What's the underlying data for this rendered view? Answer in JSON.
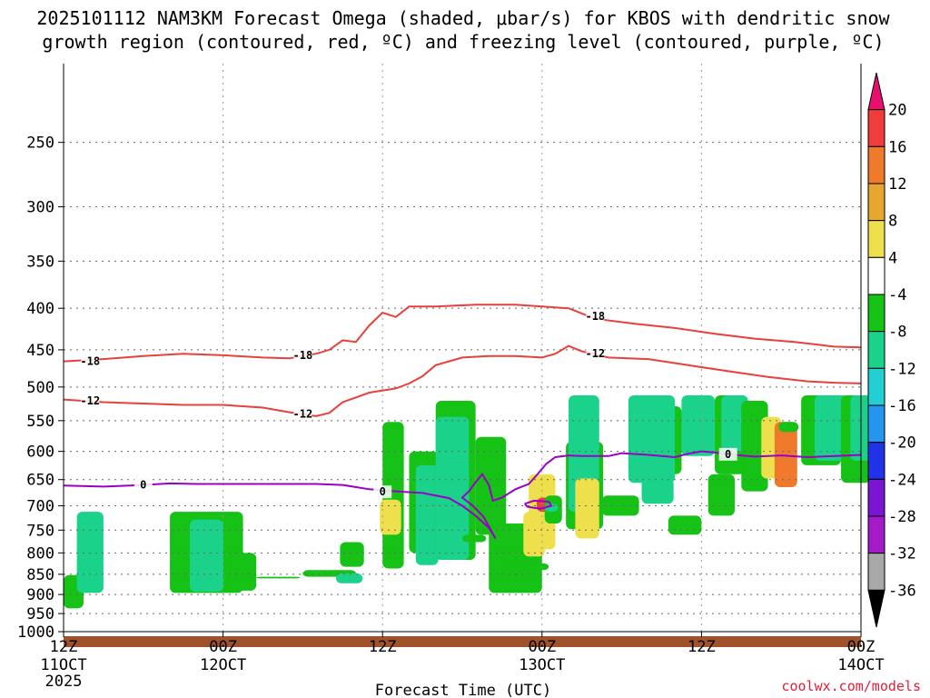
{
  "colors": {
    "dendritic_contour": "#e8403a",
    "freezing_contour": "#9a00c8",
    "ground": "#a0522d",
    "credit": "#e0203a"
  },
  "chart_data": {
    "type": "contour-time-height",
    "title_line1": "2025101112 NAM3KM Forecast Omega (shaded, μbar/s) for KBOS with dendritic snow",
    "title_line2": "growth region (contoured, red, ºC) and freezing level (contoured, purple, ºC)",
    "xlabel": "Forecast Time (UTC)",
    "ylabel": "",
    "credit": "coolwx.com/models",
    "x_range_hours": [
      0,
      60
    ],
    "y_range_hpa": [
      1000,
      200
    ],
    "x_ticks": [
      {
        "h": 0,
        "l1": "12Z",
        "l2": "11OCT",
        "l3": "2025"
      },
      {
        "h": 12,
        "l1": "00Z",
        "l2": "12OCT",
        "l3": ""
      },
      {
        "h": 24,
        "l1": "12Z",
        "l2": "",
        "l3": ""
      },
      {
        "h": 36,
        "l1": "00Z",
        "l2": "13OCT",
        "l3": ""
      },
      {
        "h": 48,
        "l1": "12Z",
        "l2": "",
        "l3": ""
      },
      {
        "h": 60,
        "l1": "00Z",
        "l2": "14OCT",
        "l3": ""
      }
    ],
    "y_ticks": [
      250,
      300,
      350,
      400,
      450,
      500,
      550,
      600,
      650,
      700,
      750,
      800,
      850,
      900,
      950,
      1000
    ],
    "colorbar": {
      "labels": [
        "20",
        "16",
        "12",
        "8",
        "4",
        "-4",
        "-8",
        "-12",
        "-16",
        "-20",
        "-24",
        "-28",
        "-32",
        "-36"
      ],
      "colors": [
        "#e8106e",
        "#f23c3c",
        "#f07a2c",
        "#e6a632",
        "#ede04c",
        "#ffffff",
        "#15c215",
        "#1ad28a",
        "#23cfd2",
        "#2496f0",
        "#2033e8",
        "#7a16d2",
        "#a41ac8",
        "#a8a8a8",
        "#000000"
      ]
    },
    "series": [
      {
        "name": "Dendritic growth -18C",
        "color": "#e8403a",
        "points": [
          [
            0,
            465
          ],
          [
            3,
            462
          ],
          [
            6,
            458
          ],
          [
            9,
            455
          ],
          [
            12,
            457
          ],
          [
            15,
            460
          ],
          [
            17,
            461
          ],
          [
            19,
            455
          ],
          [
            20,
            450
          ],
          [
            21,
            438
          ],
          [
            22,
            440
          ],
          [
            23,
            420
          ],
          [
            24,
            405
          ],
          [
            25,
            410
          ],
          [
            26,
            398
          ],
          [
            28,
            398
          ],
          [
            31,
            396
          ],
          [
            34,
            396
          ],
          [
            36,
            398
          ],
          [
            38,
            400
          ],
          [
            40,
            412
          ],
          [
            43,
            418
          ],
          [
            46,
            423
          ],
          [
            49,
            430
          ],
          [
            52,
            436
          ],
          [
            55,
            440
          ],
          [
            58,
            446
          ],
          [
            60,
            447
          ]
        ],
        "labels": [
          [
            2,
            465,
            "-18"
          ],
          [
            18,
            457,
            "-18"
          ],
          [
            40,
            409,
            "-18"
          ]
        ]
      },
      {
        "name": "Dendritic growth -12C",
        "color": "#e8403a",
        "points": [
          [
            0,
            518
          ],
          [
            3,
            522
          ],
          [
            6,
            524
          ],
          [
            9,
            526
          ],
          [
            12,
            526
          ],
          [
            15,
            530
          ],
          [
            17,
            537
          ],
          [
            19,
            543
          ],
          [
            20,
            538
          ],
          [
            21,
            522
          ],
          [
            22,
            515
          ],
          [
            23,
            508
          ],
          [
            25,
            502
          ],
          [
            26,
            495
          ],
          [
            27,
            485
          ],
          [
            28,
            470
          ],
          [
            30,
            460
          ],
          [
            32,
            458
          ],
          [
            34,
            458
          ],
          [
            36,
            460
          ],
          [
            37,
            455
          ],
          [
            38,
            445
          ],
          [
            39,
            452
          ],
          [
            41,
            460
          ],
          [
            44,
            462
          ],
          [
            47,
            470
          ],
          [
            50,
            478
          ],
          [
            53,
            486
          ],
          [
            56,
            492
          ],
          [
            58,
            494
          ],
          [
            60,
            495
          ]
        ],
        "labels": [
          [
            2,
            520,
            "-12"
          ],
          [
            18,
            540,
            "-12"
          ],
          [
            40,
            455,
            "-12"
          ]
        ]
      },
      {
        "name": "Freezing level 0C",
        "color": "#9a00c8",
        "points": [
          [
            0,
            661
          ],
          [
            3,
            663
          ],
          [
            6,
            660
          ],
          [
            8,
            657
          ],
          [
            10,
            658
          ],
          [
            13,
            658
          ],
          [
            16,
            658
          ],
          [
            19,
            658
          ],
          [
            21,
            660
          ],
          [
            23,
            668
          ],
          [
            25,
            672
          ],
          [
            27,
            675
          ],
          [
            29,
            685
          ],
          [
            30,
            700
          ],
          [
            31,
            720
          ],
          [
            32,
            745
          ],
          [
            32.5,
            768
          ],
          [
            31.6,
            722
          ],
          [
            30.8,
            700
          ],
          [
            30,
            684
          ],
          [
            30.5,
            672
          ],
          [
            31,
            655
          ],
          [
            31.5,
            640
          ],
          [
            32,
            660
          ],
          [
            32.3,
            690
          ],
          [
            33,
            684
          ],
          [
            34,
            668
          ],
          [
            35,
            658
          ],
          [
            35.6,
            642
          ],
          [
            36.3,
            622
          ],
          [
            37,
            610
          ],
          [
            38,
            607
          ],
          [
            39,
            608
          ],
          [
            41,
            608
          ],
          [
            42,
            603
          ],
          [
            44,
            606
          ],
          [
            46,
            610
          ],
          [
            47,
            604
          ],
          [
            48,
            600
          ],
          [
            49,
            602
          ],
          [
            50,
            605
          ],
          [
            52,
            609
          ],
          [
            54,
            607
          ],
          [
            56,
            610
          ],
          [
            58,
            608
          ],
          [
            60,
            606
          ]
        ],
        "labels": [
          [
            6,
            660,
            "0"
          ],
          [
            24,
            673,
            "0"
          ],
          [
            50,
            605,
            "0"
          ]
        ]
      },
      {
        "name": "Freezing level 0C (closed)",
        "color": "#9a00c8",
        "points": [
          [
            34.7,
            696
          ],
          [
            35.4,
            690
          ],
          [
            36.5,
            692
          ],
          [
            36.7,
            700
          ],
          [
            35.9,
            706
          ],
          [
            34.9,
            702
          ],
          [
            34.7,
            696
          ]
        ],
        "labels": []
      }
    ],
    "shaded_regions": [
      {
        "name": "cells",
        "cells": [
          [
            8,
            0,
            18.5,
            1.5,
            "#15c215"
          ],
          [
            13,
            1,
            36,
            2,
            "#1ad28a"
          ],
          [
            13,
            8,
            36,
            5.5,
            "#15c215"
          ],
          [
            13.4,
            9.5,
            34,
            2.5,
            "#1ad28a"
          ],
          [
            13.7,
            12.5,
            25,
            2,
            "#15c215"
          ],
          [
            17.5,
            14.5,
            18,
            2,
            "#15c215"
          ],
          [
            17.5,
            16,
            18,
            1.8,
            "#15c215"
          ],
          [
            18,
            18,
            20,
            4,
            "#15c215"
          ],
          [
            19,
            20.5,
            16,
            2,
            "#1ad28a"
          ],
          [
            21,
            20.8,
            28,
            1.8,
            "#15c215"
          ],
          [
            22,
            21,
            22,
            2.2,
            "#1ad28a"
          ],
          [
            22,
            23,
            22,
            1.7,
            "#15c215"
          ],
          [
            25,
            25,
            25,
            1.7,
            "#ede04c"
          ],
          [
            25,
            26,
            50,
            2.2,
            "#15c215"
          ],
          [
            21.5,
            26.5,
            47,
            1.7,
            "#1ad28a"
          ],
          [
            20.5,
            24,
            56,
            1.6,
            "#15c215"
          ],
          [
            30,
            23.8,
            39,
            1.6,
            "#ede04c"
          ],
          [
            23,
            28,
            60,
            3,
            "#15c215"
          ],
          [
            23,
            28,
            57,
            2.5,
            "#1ad28a"
          ],
          [
            28,
            30,
            30,
            1.8,
            "#15c215"
          ],
          [
            30,
            31,
            53,
            2.3,
            "#15c215"
          ],
          [
            13,
            32,
            33,
            4,
            "#15c215"
          ],
          [
            20,
            33,
            22,
            3.5,
            "#15c215"
          ],
          [
            24,
            34.6,
            36,
            1.6,
            "#ede04c"
          ],
          [
            26,
            35,
            45,
            2,
            "#ede04c"
          ],
          [
            38,
            35.5,
            38,
            1.6,
            "#f07a2c"
          ],
          [
            39.5,
            35.6,
            36,
            1.2,
            "#f23c3c"
          ],
          [
            33,
            36.2,
            40,
            1.3,
            "#15c215"
          ],
          [
            36,
            36.2,
            38,
            1,
            "#1ad28a"
          ],
          [
            31.5,
            37.8,
            52,
            2.8,
            "#15c215"
          ],
          [
            36,
            38,
            61,
            2.3,
            "#1ad28a"
          ],
          [
            29,
            38.5,
            44,
            1.8,
            "#ede04c"
          ],
          [
            35,
            40.5,
            40,
            2.8,
            "#15c215"
          ],
          [
            45,
            42.5,
            59,
            4,
            "#15c215"
          ],
          [
            43,
            42.5,
            61,
            3.5,
            "#1ad28a"
          ],
          [
            38,
            43.5,
            44,
            2.4,
            "#1ad28a"
          ],
          [
            30,
            45.5,
            35,
            2.5,
            "#15c215"
          ],
          [
            49,
            46.5,
            61,
            2.5,
            "#1ad28a"
          ],
          [
            35,
            48.5,
            45,
            2,
            "#15c215"
          ],
          [
            45,
            49,
            61,
            2.3,
            "#15c215"
          ],
          [
            50,
            49.5,
            61,
            2,
            "#1ad28a"
          ],
          [
            41,
            51,
            60,
            2,
            "#15c215"
          ],
          [
            44,
            52.5,
            57,
            1.5,
            "#ede04c"
          ],
          [
            42,
            53.5,
            56,
            1.7,
            "#f07a2c"
          ],
          [
            54,
            53.8,
            56,
            1.5,
            "#15c215"
          ],
          [
            47,
            55.5,
            61,
            3,
            "#15c215"
          ],
          [
            48,
            56.5,
            61,
            2.6,
            "#1ad28a"
          ],
          [
            43,
            58.5,
            61,
            2.2,
            "#15c215"
          ],
          [
            48,
            59.2,
            61,
            1.6,
            "#1ad28a"
          ]
        ]
      }
    ]
  }
}
